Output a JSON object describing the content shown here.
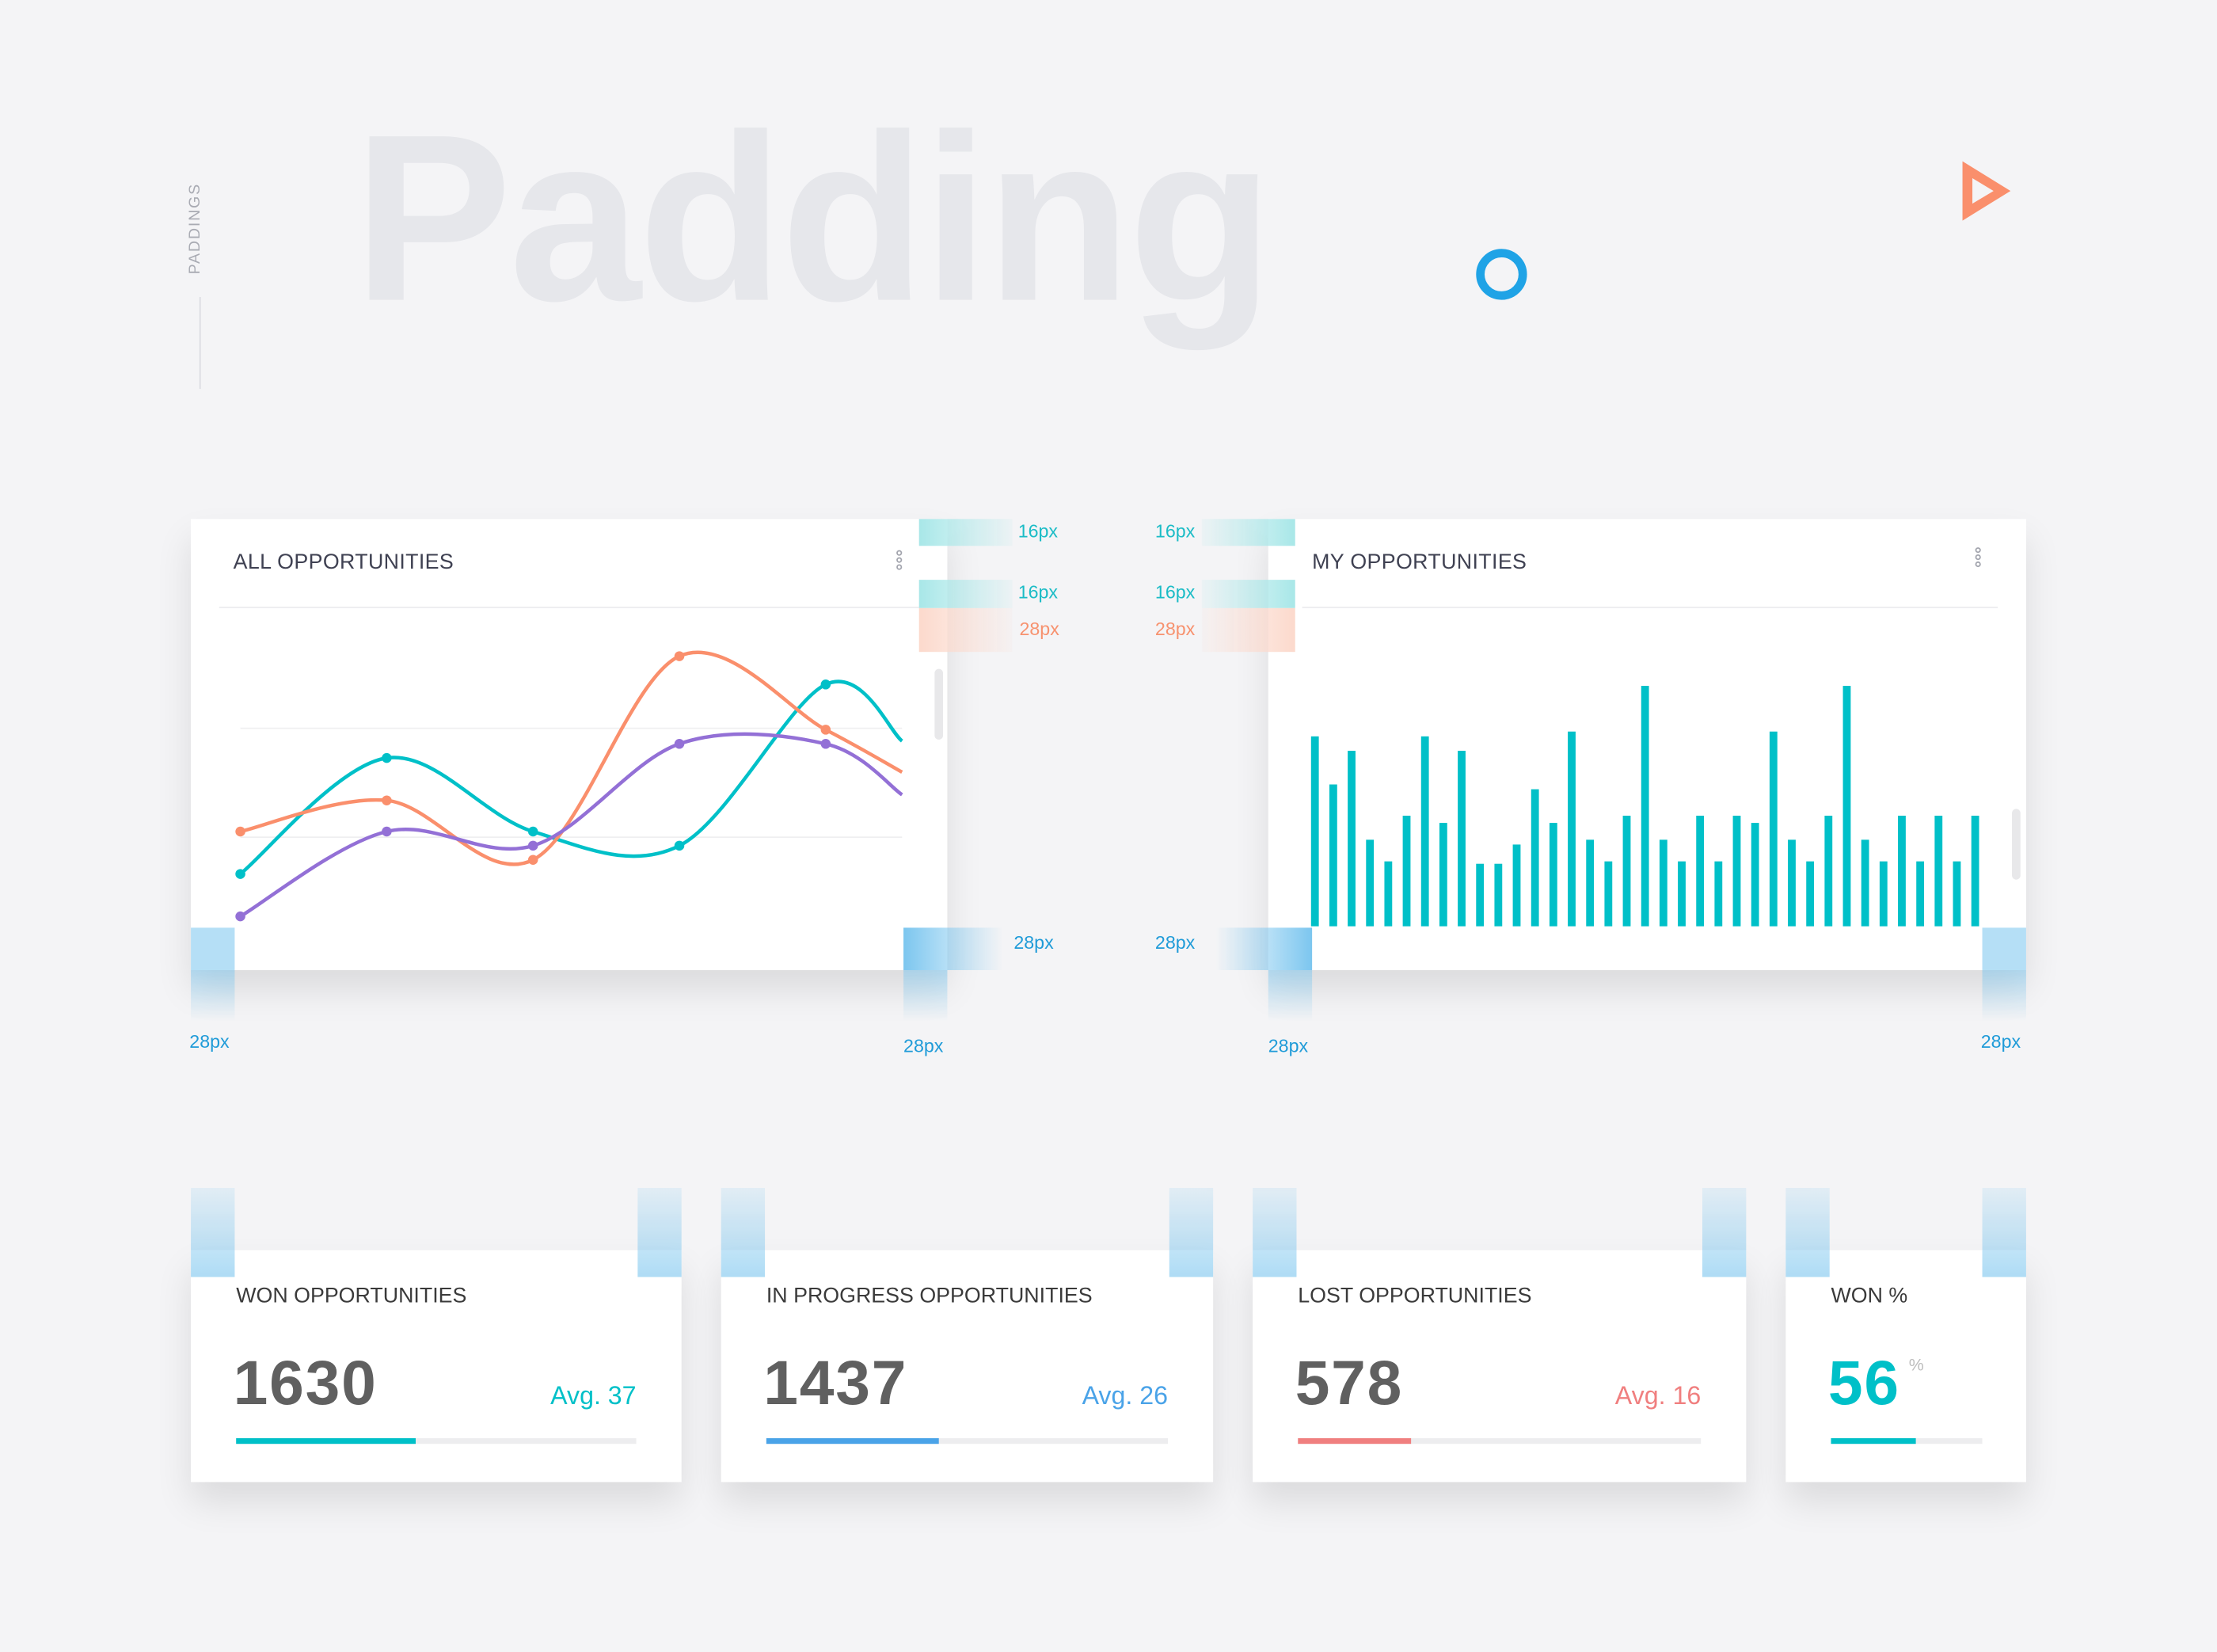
{
  "side_label": "PADDINGS",
  "hero_title": "Padding",
  "colors": {
    "teal": "#00c0c8",
    "orange": "#fa8f6c",
    "purple": "#9370d6",
    "blue": "#4aa3e8",
    "salmon": "#f07f7f",
    "ring": "#1fa3e6"
  },
  "annotations": {
    "p16": "16px",
    "p28": "28px"
  },
  "all_opps": {
    "title": "ALL OPPORTUNITIES",
    "menu_icon": "more-vertical-icon"
  },
  "my_opps": {
    "title": "MY OPPORTUNITIES",
    "menu_icon": "more-vertical-icon"
  },
  "chart_data": [
    {
      "type": "line",
      "title": "ALL OPPORTUNITIES",
      "x": [
        1,
        2,
        3,
        4,
        5,
        6
      ],
      "ylim": [
        0,
        110
      ],
      "grid": true,
      "series": [
        {
          "name": "teal",
          "color": "#00c0c8",
          "values": [
            21,
            62,
            36,
            31,
            88,
            68
          ]
        },
        {
          "name": "orange",
          "color": "#fa8f6c",
          "values": [
            36,
            47,
            26,
            98,
            72,
            57
          ]
        },
        {
          "name": "purple",
          "color": "#9370d6",
          "values": [
            6,
            36,
            31,
            67,
            67,
            49
          ]
        }
      ]
    },
    {
      "type": "bar",
      "title": "MY OPPORTUNITIES",
      "ylim": [
        0,
        100
      ],
      "color": "#00c0c8",
      "values": [
        79,
        59,
        73,
        36,
        27,
        46,
        79,
        43,
        73,
        26,
        26,
        34,
        57,
        43,
        81,
        36,
        27,
        46,
        100,
        36,
        27,
        46,
        27,
        46,
        43,
        81,
        36,
        27,
        46,
        100,
        36,
        27,
        46,
        27,
        46,
        27,
        46
      ]
    }
  ],
  "stats": [
    {
      "title": "WON OPPORTUNITIES",
      "value": "1630",
      "avg": "Avg. 37",
      "progress": 0.45,
      "color": "#00c0c8"
    },
    {
      "title": "IN PROGRESS OPPORTUNITIES",
      "value": "1437",
      "avg": "Avg. 26",
      "progress": 0.43,
      "color": "#4aa3e8"
    },
    {
      "title": "LOST OPPORTUNITIES",
      "value": "578",
      "avg": "Avg. 16",
      "progress": 0.28,
      "color": "#f07f7f"
    }
  ],
  "won_pct": {
    "title": "WON %",
    "value": "56",
    "unit": "%",
    "progress": 0.56,
    "color": "#00c0c8"
  }
}
